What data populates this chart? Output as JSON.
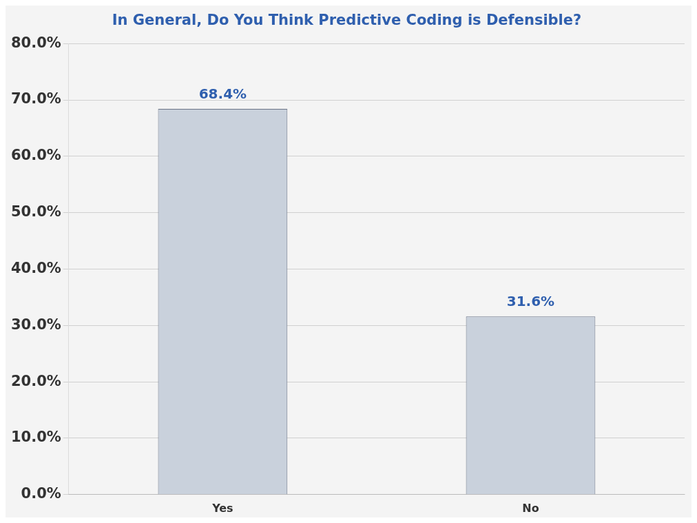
{
  "chart_data": {
    "type": "bar",
    "title": "In General, Do You Think Predictive Coding is Defensible?",
    "categories": [
      "Yes",
      "No"
    ],
    "values": [
      68.4,
      31.6
    ],
    "color": "#c9d1dc",
    "value_labels": [
      "68.4%",
      "31.6%"
    ],
    "ylim": [
      0,
      80
    ],
    "yticks": [
      {
        "value": 0,
        "label": "0.0%"
      },
      {
        "value": 10,
        "label": "10.0%"
      },
      {
        "value": 20,
        "label": "20.0%"
      },
      {
        "value": 30,
        "label": "30.0%"
      },
      {
        "value": 40,
        "label": "40.0%"
      },
      {
        "value": 50,
        "label": "50.0%"
      },
      {
        "value": 60,
        "label": "60.0%"
      },
      {
        "value": 70,
        "label": "70.0%"
      },
      {
        "value": 80,
        "label": "80.0%"
      }
    ],
    "grid": "y",
    "legend": false
  }
}
